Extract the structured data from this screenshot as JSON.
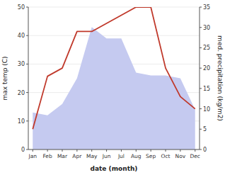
{
  "chart_data": {
    "type": "line",
    "x_label": "date (month)",
    "y_label": "max temp (C)",
    "y2_label": "med. precipitation (kg/m2)",
    "categories": [
      "Jan",
      "Feb",
      "Mar",
      "Apr",
      "May",
      "Jun",
      "Jul",
      "Aug",
      "Sep",
      "Oct",
      "Nov",
      "Dec"
    ],
    "series": [
      {
        "type": "area",
        "color": "#c5caf0",
        "values": [
          13,
          12,
          16,
          25,
          43,
          39,
          39,
          27,
          26,
          26,
          25,
          14
        ]
      },
      {
        "type": "line",
        "color": "#c0392b",
        "axis": "y2",
        "values": [
          5,
          18,
          20,
          29,
          29,
          31,
          33,
          35,
          35,
          20,
          13,
          10
        ]
      }
    ],
    "ylim": [
      0,
      50
    ],
    "yticks": [
      0,
      10,
      20,
      30,
      40,
      50
    ],
    "y2lim": [
      0,
      35
    ],
    "y2ticks": [
      0,
      5,
      10,
      15,
      20,
      25,
      30,
      35
    ],
    "grid": true
  }
}
